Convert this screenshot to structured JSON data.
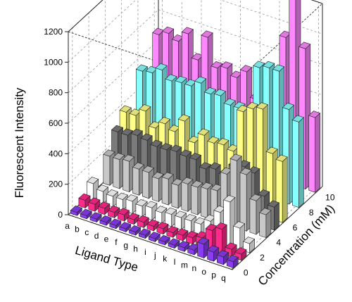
{
  "chart_data": {
    "type": "bar3d",
    "xlabel": "Ligand Type",
    "ylabel": "Concentration (mM)",
    "zlabel": "Fluorescent Intensity",
    "categories": [
      "a",
      "b",
      "c",
      "d",
      "e",
      "f",
      "g",
      "h",
      "i",
      "j",
      "k",
      "l",
      "m",
      "n",
      "o",
      "p",
      "q"
    ],
    "y_ticks": [
      "0",
      "2",
      "4",
      "6",
      "8",
      "10"
    ],
    "z_ticks": [
      "0",
      "200",
      "400",
      "600",
      "800",
      "1000",
      "1200"
    ],
    "zlim": [
      0,
      1200
    ],
    "ylim": [
      0,
      10
    ],
    "grid": true,
    "series": [
      {
        "concentration": 0,
        "color": "#8a3cf0",
        "values": [
          20,
          20,
          20,
          20,
          20,
          20,
          20,
          20,
          20,
          20,
          20,
          25,
          30,
          90,
          60,
          50,
          40
        ]
      },
      {
        "concentration": 1,
        "color": "#ff2a8c",
        "values": [
          50,
          45,
          40,
          35,
          40,
          30,
          35,
          30,
          35,
          30,
          35,
          40,
          60,
          130,
          160,
          50,
          40
        ]
      },
      {
        "concentration": 2,
        "color": "#ffffff",
        "values": [
          110,
          80,
          70,
          70,
          80,
          70,
          80,
          70,
          80,
          80,
          80,
          80,
          120,
          200,
          290,
          140,
          60
        ]
      },
      {
        "concentration": 4,
        "color": "#c8c8c8",
        "values": [
          190,
          190,
          200,
          170,
          170,
          150,
          170,
          150,
          180,
          180,
          190,
          200,
          330,
          440,
          370,
          220,
          150
        ]
      },
      {
        "concentration": 5,
        "color": "#7a7a7a",
        "values": [
          300,
          300,
          320,
          310,
          290,
          290,
          300,
          290,
          290,
          250,
          270,
          250,
          330,
          350,
          330,
          200,
          150
        ]
      },
      {
        "concentration": 6,
        "color": "#ffff88",
        "values": [
          380,
          380,
          430,
          340,
          390,
          360,
          450,
          330,
          400,
          370,
          380,
          360,
          640,
          680,
          700,
          430,
          400
        ]
      },
      {
        "concentration": 8,
        "color": "#88ffff",
        "values": [
          550,
          560,
          600,
          550,
          560,
          560,
          600,
          550,
          560,
          520,
          520,
          500,
          830,
          850,
          850,
          620,
          560
        ]
      },
      {
        "concentration": 10,
        "color": "#ff88ff",
        "values": [
          690,
          720,
          690,
          760,
          610,
          780,
          600,
          620,
          580,
          640,
          480,
          560,
          620,
          950,
          1250,
          920,
          490
        ]
      }
    ]
  }
}
